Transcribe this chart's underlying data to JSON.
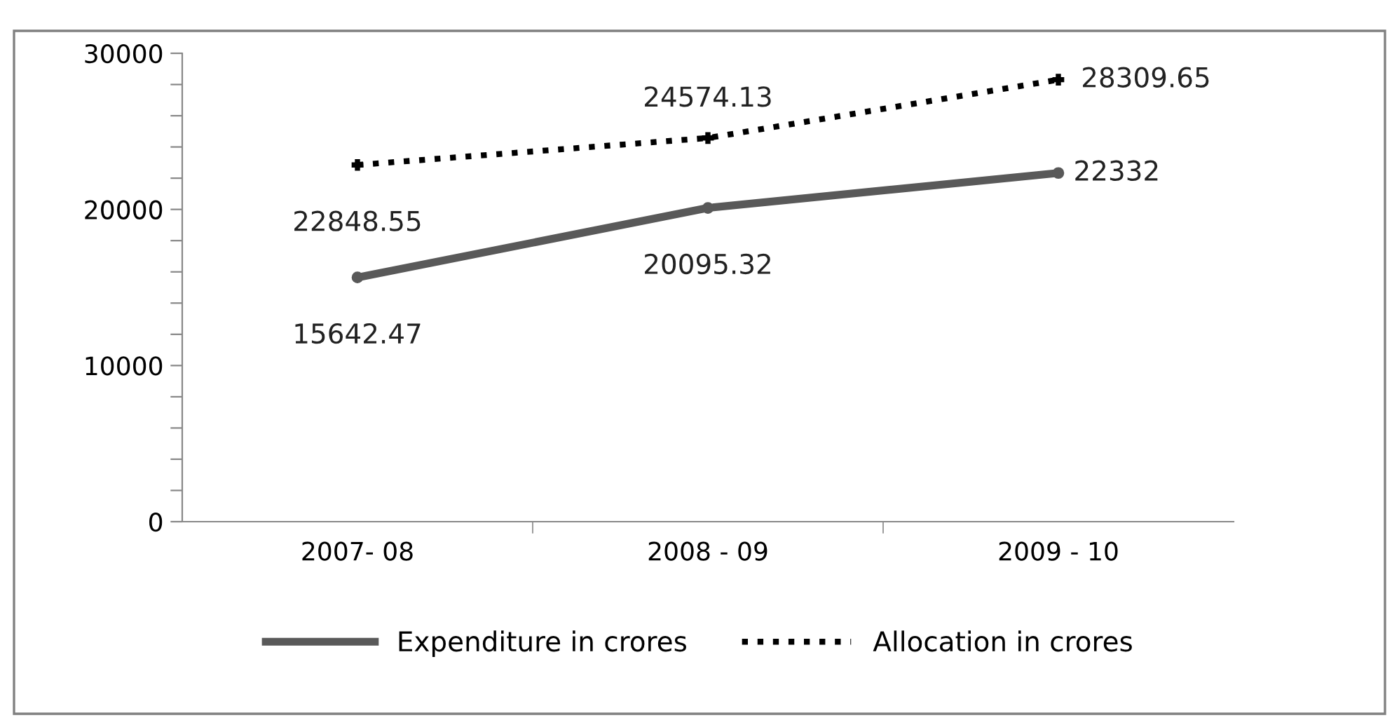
{
  "chart_data": {
    "type": "line",
    "categories": [
      "2007- 08",
      "2008 - 09",
      "2009 - 10"
    ],
    "series": [
      {
        "name": "Expenditure in crores",
        "color": "#595959",
        "values": [
          15642.47,
          20095.32,
          22332
        ],
        "marker": "circle",
        "line_style": "solid"
      },
      {
        "name": "Allocation in crores",
        "color": "#000000",
        "values": [
          22848.55,
          24574.13,
          28309.65
        ],
        "marker": "cross",
        "line_style": "dotted"
      }
    ],
    "ylim": [
      0,
      30000
    ],
    "yticks": [
      0,
      {
        "value": 2000,
        "label": null
      },
      {
        "value": 4000,
        "label": null
      },
      {
        "value": 6000,
        "label": null
      },
      {
        "value": 8000,
        "label": null
      },
      10000,
      {
        "value": 12000,
        "label": null
      },
      {
        "value": 14000,
        "label": null
      },
      {
        "value": 16000,
        "label": null
      },
      {
        "value": 18000,
        "label": null
      },
      20000,
      {
        "value": 22000,
        "label": null
      },
      {
        "value": 24000,
        "label": null
      },
      {
        "value": 26000,
        "label": null
      },
      {
        "value": 28000,
        "label": null
      },
      30000
    ],
    "data_labels": true,
    "grid": false,
    "legend": "bottom"
  }
}
